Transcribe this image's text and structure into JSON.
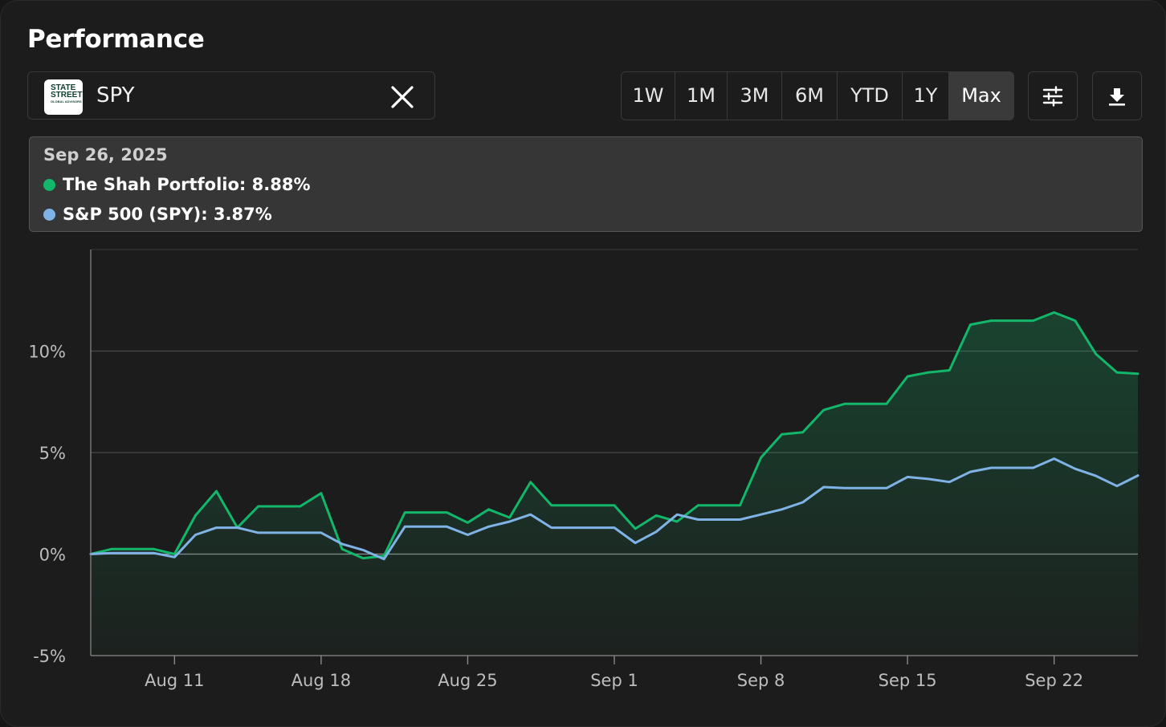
{
  "header": {
    "title": "Performance"
  },
  "compare": {
    "ticker": "SPY",
    "logo_line1": "STATE",
    "logo_line2": "STREET",
    "logo_line3": "GLOBAL ADVISORS"
  },
  "ranges": [
    {
      "label": "1W",
      "active": false
    },
    {
      "label": "1M",
      "active": false
    },
    {
      "label": "3M",
      "active": false
    },
    {
      "label": "6M",
      "active": false
    },
    {
      "label": "YTD",
      "active": false
    },
    {
      "label": "1Y",
      "active": false
    },
    {
      "label": "Max",
      "active": true
    }
  ],
  "icons": {
    "settings": "sliders-icon",
    "download": "download-icon",
    "close": "close-icon"
  },
  "tooltip": {
    "date": "Sep 26, 2025",
    "portfolio_label": "The Shah Portfolio: 8.88%",
    "benchmark_label": "S&P 500 (SPY): 3.87%"
  },
  "colors": {
    "portfolio": "#12b76a",
    "benchmark": "#7fb3e6",
    "background": "#1c1c1c"
  },
  "chart_data": {
    "type": "line",
    "title": "",
    "xlabel": "",
    "ylabel": "",
    "x_ticks": [
      "Aug 11",
      "Aug 18",
      "Aug 25",
      "Sep 1",
      "Sep 8",
      "Sep 15",
      "Sep 22"
    ],
    "y_ticks": [
      {
        "value": 10,
        "label": "10%"
      },
      {
        "value": 5,
        "label": "5%"
      },
      {
        "value": 0,
        "label": "0%"
      },
      {
        "value": -5,
        "label": "-5%"
      }
    ],
    "ylim": [
      -5,
      15
    ],
    "xlim": [
      "2025-08-07",
      "2025-09-26"
    ],
    "grid": true,
    "series": [
      {
        "name": "The Shah Portfolio",
        "color": "#12b76a",
        "points": [
          [
            "2025-08-07",
            0.0
          ],
          [
            "2025-08-08",
            0.25
          ],
          [
            "2025-08-09",
            0.25
          ],
          [
            "2025-08-10",
            0.25
          ],
          [
            "2025-08-11",
            0.0
          ],
          [
            "2025-08-12",
            1.9
          ],
          [
            "2025-08-13",
            3.1
          ],
          [
            "2025-08-14",
            1.3
          ],
          [
            "2025-08-15",
            2.35
          ],
          [
            "2025-08-16",
            2.35
          ],
          [
            "2025-08-17",
            2.35
          ],
          [
            "2025-08-18",
            3.0
          ],
          [
            "2025-08-19",
            0.25
          ],
          [
            "2025-08-20",
            -0.2
          ],
          [
            "2025-08-21",
            -0.1
          ],
          [
            "2025-08-22",
            2.05
          ],
          [
            "2025-08-23",
            2.05
          ],
          [
            "2025-08-24",
            2.05
          ],
          [
            "2025-08-25",
            1.55
          ],
          [
            "2025-08-26",
            2.2
          ],
          [
            "2025-08-27",
            1.8
          ],
          [
            "2025-08-28",
            3.55
          ],
          [
            "2025-08-29",
            2.4
          ],
          [
            "2025-08-30",
            2.4
          ],
          [
            "2025-08-31",
            2.4
          ],
          [
            "2025-09-01",
            2.4
          ],
          [
            "2025-09-02",
            1.25
          ],
          [
            "2025-09-03",
            1.9
          ],
          [
            "2025-09-04",
            1.6
          ],
          [
            "2025-09-05",
            2.4
          ],
          [
            "2025-09-06",
            2.4
          ],
          [
            "2025-09-07",
            2.4
          ],
          [
            "2025-09-08",
            4.75
          ],
          [
            "2025-09-09",
            5.9
          ],
          [
            "2025-09-10",
            6.0
          ],
          [
            "2025-09-11",
            7.1
          ],
          [
            "2025-09-12",
            7.4
          ],
          [
            "2025-09-13",
            7.4
          ],
          [
            "2025-09-14",
            7.4
          ],
          [
            "2025-09-15",
            8.75
          ],
          [
            "2025-09-16",
            8.95
          ],
          [
            "2025-09-17",
            9.05
          ],
          [
            "2025-09-18",
            11.3
          ],
          [
            "2025-09-19",
            11.5
          ],
          [
            "2025-09-20",
            11.5
          ],
          [
            "2025-09-21",
            11.5
          ],
          [
            "2025-09-22",
            11.9
          ],
          [
            "2025-09-23",
            11.5
          ],
          [
            "2025-09-24",
            9.85
          ],
          [
            "2025-09-25",
            8.95
          ],
          [
            "2025-09-26",
            8.88
          ]
        ]
      },
      {
        "name": "S&P 500 (SPY)",
        "color": "#7fb3e6",
        "points": [
          [
            "2025-08-07",
            0.0
          ],
          [
            "2025-08-08",
            0.05
          ],
          [
            "2025-08-09",
            0.05
          ],
          [
            "2025-08-10",
            0.05
          ],
          [
            "2025-08-11",
            -0.15
          ],
          [
            "2025-08-12",
            0.95
          ],
          [
            "2025-08-13",
            1.3
          ],
          [
            "2025-08-14",
            1.3
          ],
          [
            "2025-08-15",
            1.05
          ],
          [
            "2025-08-16",
            1.05
          ],
          [
            "2025-08-17",
            1.05
          ],
          [
            "2025-08-18",
            1.05
          ],
          [
            "2025-08-19",
            0.5
          ],
          [
            "2025-08-20",
            0.2
          ],
          [
            "2025-08-21",
            -0.25
          ],
          [
            "2025-08-22",
            1.35
          ],
          [
            "2025-08-23",
            1.35
          ],
          [
            "2025-08-24",
            1.35
          ],
          [
            "2025-08-25",
            0.95
          ],
          [
            "2025-08-26",
            1.35
          ],
          [
            "2025-08-27",
            1.6
          ],
          [
            "2025-08-28",
            1.95
          ],
          [
            "2025-08-29",
            1.3
          ],
          [
            "2025-08-30",
            1.3
          ],
          [
            "2025-08-31",
            1.3
          ],
          [
            "2025-09-01",
            1.3
          ],
          [
            "2025-09-02",
            0.55
          ],
          [
            "2025-09-03",
            1.1
          ],
          [
            "2025-09-04",
            1.95
          ],
          [
            "2025-09-05",
            1.7
          ],
          [
            "2025-09-06",
            1.7
          ],
          [
            "2025-09-07",
            1.7
          ],
          [
            "2025-09-08",
            1.95
          ],
          [
            "2025-09-09",
            2.2
          ],
          [
            "2025-09-10",
            2.55
          ],
          [
            "2025-09-11",
            3.3
          ],
          [
            "2025-09-12",
            3.25
          ],
          [
            "2025-09-13",
            3.25
          ],
          [
            "2025-09-14",
            3.25
          ],
          [
            "2025-09-15",
            3.8
          ],
          [
            "2025-09-16",
            3.7
          ],
          [
            "2025-09-17",
            3.55
          ],
          [
            "2025-09-18",
            4.05
          ],
          [
            "2025-09-19",
            4.25
          ],
          [
            "2025-09-20",
            4.25
          ],
          [
            "2025-09-21",
            4.25
          ],
          [
            "2025-09-22",
            4.7
          ],
          [
            "2025-09-23",
            4.2
          ],
          [
            "2025-09-24",
            3.85
          ],
          [
            "2025-09-25",
            3.35
          ],
          [
            "2025-09-26",
            3.87
          ]
        ]
      }
    ]
  }
}
